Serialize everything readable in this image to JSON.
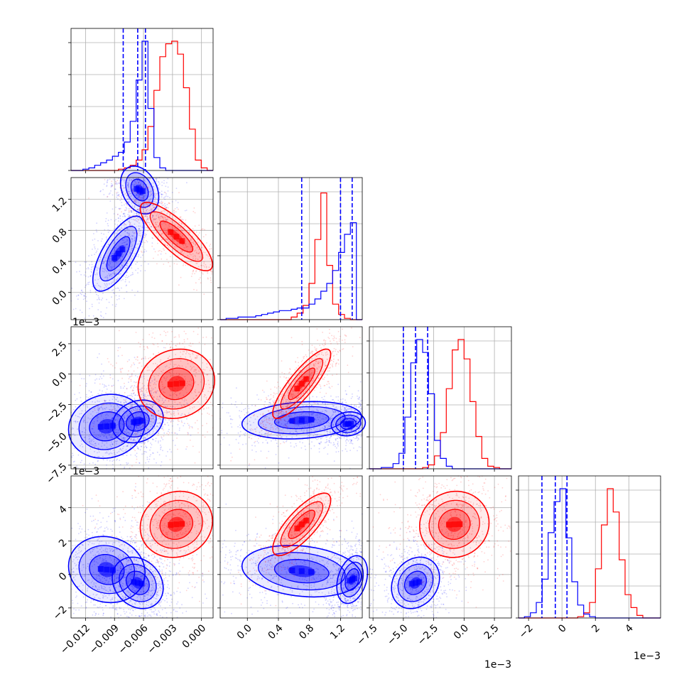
{
  "colors": {
    "red": "#ff0000",
    "blue": "#0000ff",
    "grid": "#b0b0b0",
    "axis": "#000000"
  },
  "chart_data": {
    "type": "corner",
    "variables": 4,
    "grid": true,
    "offset_labels": {
      "row1_y": "1e−3",
      "row2_y": "1e−3",
      "col2_x": "1e−3",
      "col3_x": "1e−3"
    },
    "axes": [
      {
        "range": [
          -0.0135,
          0.0012
        ],
        "ticks": [
          -0.012,
          -0.009,
          -0.006,
          -0.003,
          0.0
        ],
        "tick_labels": [
          "−0.012",
          "−0.009",
          "−0.006",
          "−0.003",
          "0.000"
        ]
      },
      {
        "range": [
          -0.35,
          1.48
        ],
        "ticks": [
          0.0,
          0.4,
          0.8,
          1.2
        ],
        "tick_labels": [
          "0.0",
          "0.4",
          "0.8",
          "1.2"
        ]
      },
      {
        "range": [
          -7.8,
          3.9
        ],
        "ticks": [
          -7.5,
          -5.0,
          -2.5,
          0.0,
          2.5
        ],
        "tick_labels": [
          "−7.5",
          "−5.0",
          "−2.5",
          "0.0",
          "2.5"
        ]
      },
      {
        "range": [
          -2.6,
          5.9
        ],
        "ticks": [
          -2,
          0,
          2,
          4
        ],
        "tick_labels": [
          "−2",
          "0",
          "2",
          "4"
        ]
      }
    ],
    "diag_quantiles_blue": [
      [
        -0.0081,
        -0.0066,
        -0.0058
      ],
      [
        0.7,
        1.2,
        1.35
      ],
      [
        -5.0,
        -4.0,
        -3.0
      ],
      [
        -1.2,
        -0.4,
        0.3
      ]
    ],
    "series": [
      {
        "name": "red",
        "hists": [
          {
            "edges_range": [
              -0.0135,
              0.0012
            ],
            "counts": [
              0,
              0,
              0,
              0,
              0,
              0,
              0,
              0,
              1,
              2,
              4,
              8,
              16,
              34,
              62,
              88,
              98,
              100,
              90,
              64,
              32,
              8,
              2,
              0
            ]
          },
          {
            "edges_range": [
              -0.35,
              1.48
            ],
            "counts": [
              0,
              0,
              0,
              0,
              0,
              0,
              0,
              0,
              0,
              0,
              0,
              0,
              2,
              5,
              11,
              28,
              62,
              98,
              42,
              12,
              4,
              1,
              0,
              0
            ]
          },
          {
            "edges_range": [
              -7.8,
              3.9
            ],
            "counts": [
              0,
              0,
              0,
              0,
              0,
              0,
              0,
              0,
              0,
              1,
              3,
              10,
              28,
              62,
              92,
              100,
              85,
              52,
              25,
              8,
              2,
              1,
              0,
              0
            ]
          },
          {
            "edges_range": [
              -2.6,
              5.9
            ],
            "counts": [
              0,
              0,
              0,
              0,
              0,
              0,
              0,
              0,
              0,
              0,
              1,
              4,
              12,
              38,
              72,
              100,
              82,
              45,
              18,
              8,
              2,
              0,
              0,
              0
            ]
          }
        ],
        "blobs": [
          {
            "pair": [
              0,
              1
            ],
            "center": [
              -0.0026,
              0.72
            ],
            "sd": [
              0.0017,
              0.2
            ],
            "rho": -0.82
          },
          {
            "pair": [
              0,
              2
            ],
            "center": [
              -0.0026,
              -0.8
            ],
            "sd": [
              0.0018,
              1.3
            ],
            "rho": 0.1
          },
          {
            "pair": [
              0,
              3
            ],
            "center": [
              -0.0026,
              3.0
            ],
            "sd": [
              0.0017,
              0.9
            ],
            "rho": 0.1
          },
          {
            "pair": [
              1,
              2
            ],
            "center": [
              0.7,
              -0.8
            ],
            "sd": [
              0.17,
              1.3
            ],
            "rho": 0.85
          },
          {
            "pair": [
              1,
              3
            ],
            "center": [
              0.7,
              3.0
            ],
            "sd": [
              0.17,
              0.85
            ],
            "rho": 0.78
          },
          {
            "pair": [
              2,
              3
            ],
            "center": [
              -0.8,
              3.0
            ],
            "sd": [
              1.3,
              0.9
            ],
            "rho": 0.05
          }
        ]
      },
      {
        "name": "blue",
        "hists": [
          {
            "edges_range": [
              -0.0135,
              0.0012
            ],
            "counts": [
              0,
              0,
              1,
              2,
              4,
              6,
              8,
              11,
              14,
              22,
              38,
              70,
              100,
              48,
              10,
              2,
              0,
              0,
              0,
              0,
              0,
              0,
              0,
              0
            ]
          },
          {
            "edges_range": [
              -0.35,
              1.48
            ],
            "counts": [
              0,
              1,
              1,
              2,
              2,
              2,
              3,
              4,
              5,
              6,
              7,
              7,
              8,
              9,
              9,
              12,
              16,
              22,
              28,
              38,
              52,
              66,
              75,
              0
            ]
          },
          {
            "edges_range": [
              -7.8,
              3.9
            ],
            "counts": [
              0,
              0,
              1,
              1,
              4,
              12,
              40,
              82,
              100,
              90,
              58,
              22,
              8,
              2,
              0,
              0,
              0,
              0,
              0,
              0,
              0,
              0,
              0,
              0
            ]
          },
          {
            "edges_range": [
              -2.6,
              5.9
            ],
            "counts": [
              0,
              1,
              4,
              12,
              30,
              66,
              90,
              100,
              62,
              28,
              10,
              3,
              1,
              0,
              0,
              0,
              0,
              0,
              0,
              0,
              0,
              0,
              0,
              0
            ]
          }
        ],
        "blobs": [
          {
            "pair": [
              0,
              1
            ],
            "center": [
              -0.0064,
              1.32
            ],
            "sd": [
              0.0009,
              0.14
            ],
            "rho": -0.3
          },
          {
            "pair": [
              0,
              1
            ],
            "center": [
              -0.0086,
              0.5
            ],
            "sd": [
              0.0012,
              0.22
            ],
            "rho": 0.7
          },
          {
            "pair": [
              0,
              2
            ],
            "center": [
              -0.0066,
              -3.9
            ],
            "sd": [
              0.0012,
              0.8
            ],
            "rho": 0.2
          },
          {
            "pair": [
              0,
              2
            ],
            "center": [
              -0.0098,
              -4.3
            ],
            "sd": [
              0.0018,
              1.2
            ],
            "rho": 0.1
          },
          {
            "pair": [
              0,
              3
            ],
            "center": [
              -0.0066,
              -0.5
            ],
            "sd": [
              0.0012,
              0.7
            ],
            "rho": -0.2
          },
          {
            "pair": [
              0,
              3
            ],
            "center": [
              -0.0098,
              0.3
            ],
            "sd": [
              0.0018,
              0.9
            ],
            "rho": -0.1
          },
          {
            "pair": [
              1,
              2
            ],
            "center": [
              1.3,
              -4.1
            ],
            "sd": [
              0.1,
              0.45
            ],
            "rho": 0.1
          },
          {
            "pair": [
              1,
              2
            ],
            "center": [
              0.7,
              -3.8
            ],
            "sd": [
              0.35,
              0.7
            ],
            "rho": 0.2
          },
          {
            "pair": [
              1,
              3
            ],
            "center": [
              1.35,
              -0.3
            ],
            "sd": [
              0.09,
              0.65
            ],
            "rho": 0.3
          },
          {
            "pair": [
              1,
              3
            ],
            "center": [
              0.7,
              0.2
            ],
            "sd": [
              0.35,
              0.7
            ],
            "rho": -0.2
          },
          {
            "pair": [
              2,
              3
            ],
            "center": [
              -4.0,
              -0.5
            ],
            "sd": [
              0.9,
              0.7
            ],
            "rho": 0.2
          }
        ]
      }
    ]
  }
}
